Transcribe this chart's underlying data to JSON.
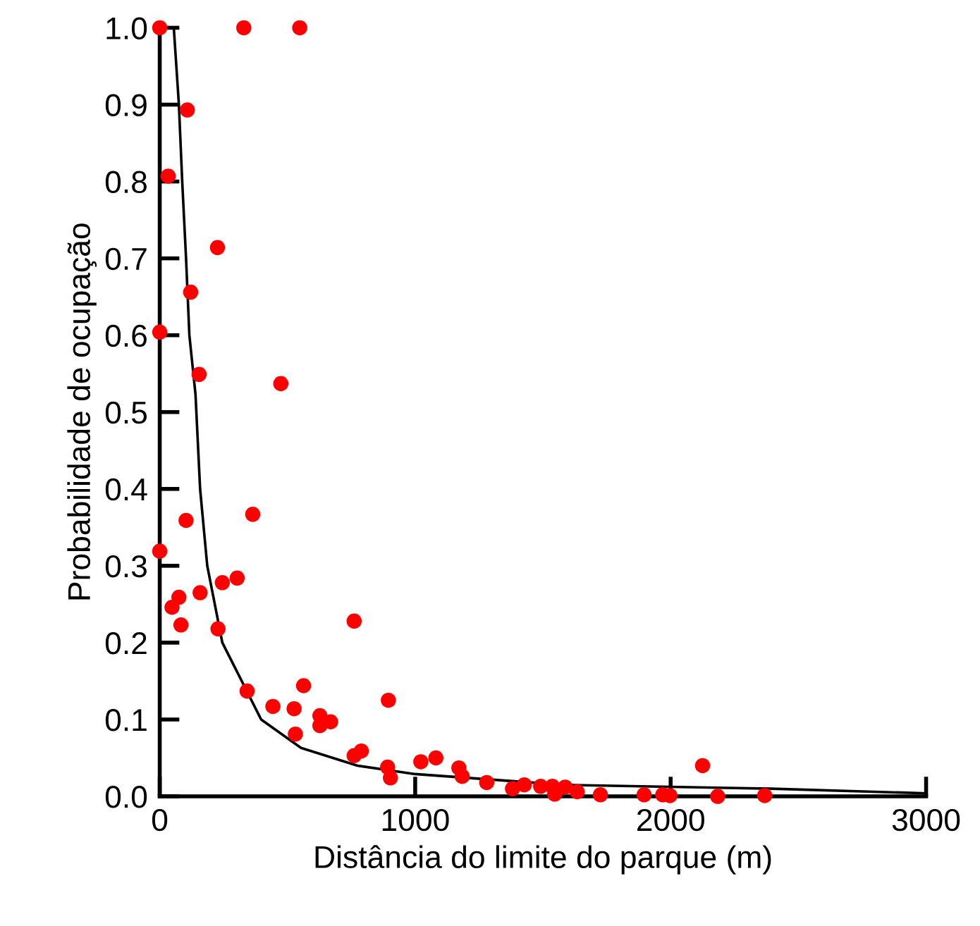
{
  "chart_data": {
    "type": "scatter",
    "xlabel": "Distância do limite do parque (m)",
    "ylabel": "Probabilidade de ocupação",
    "xlim": [
      0,
      3000
    ],
    "ylim": [
      0,
      1.0
    ],
    "xticks": [
      0,
      1000,
      2000,
      3000
    ],
    "yticks": [
      {
        "value": 0,
        "label": "0.0"
      },
      {
        "value": 0.1,
        "label": "0.1"
      },
      {
        "value": 0.2,
        "label": "0.2"
      },
      {
        "value": 0.3,
        "label": "0.3"
      },
      {
        "value": 0.4,
        "label": "0.4"
      },
      {
        "value": 0.5,
        "label": "0.5"
      },
      {
        "value": 0.6,
        "label": "0.6"
      },
      {
        "value": 0.7,
        "label": "0.7"
      },
      {
        "value": 0.8,
        "label": "0.8"
      },
      {
        "value": 0.9,
        "label": "0.9"
      },
      {
        "value": 1.0,
        "label": "1.0"
      }
    ],
    "grid": false,
    "legend": false,
    "series": [
      {
        "color": "#ff0000",
        "marker": "circle",
        "x": [
          0,
          329,
          548,
          108,
          33,
          226,
          121,
          0,
          154,
          474,
          103,
          364,
          0,
          245,
          303,
          158,
          75,
          48,
          83,
          228,
          761,
          342,
          563,
          443,
          526,
          895,
          627,
          627,
          669,
          531,
          761,
          789,
          892,
          903,
          1022,
          1081,
          1171,
          1184,
          1280,
          1381,
          1427,
          1491,
          1537,
          1546,
          1587,
          1634,
          1725,
          1896,
          1969,
          1997,
          2125,
          2184,
          2368
        ],
        "values": [
          1.0,
          1.0,
          1.0,
          0.893,
          0.807,
          0.714,
          0.656,
          0.604,
          0.549,
          0.537,
          0.359,
          0.367,
          0.319,
          0.278,
          0.284,
          0.265,
          0.259,
          0.246,
          0.223,
          0.218,
          0.228,
          0.137,
          0.144,
          0.117,
          0.114,
          0.125,
          0.105,
          0.092,
          0.097,
          0.081,
          0.053,
          0.059,
          0.038,
          0.024,
          0.045,
          0.05,
          0.037,
          0.026,
          0.018,
          0.01,
          0.015,
          0.013,
          0.013,
          0.003,
          0.012,
          0.006,
          0.002,
          0.002,
          0.002,
          0.001,
          0.04,
          0.0,
          0.001
        ]
      },
      {
        "type": "line",
        "color": "#000000",
        "marker": "none",
        "line_style": "solid",
        "x": [
          55,
          75,
          88,
          103,
          116,
          140,
          158,
          186,
          245,
          397,
          553,
          774,
          1000,
          1583,
          2392,
          2999
        ],
        "values": [
          1.0,
          0.9,
          0.8,
          0.7,
          0.6,
          0.523,
          0.4,
          0.3,
          0.2,
          0.1,
          0.063,
          0.04,
          0.029,
          0.015,
          0.01,
          0.004
        ]
      }
    ]
  }
}
